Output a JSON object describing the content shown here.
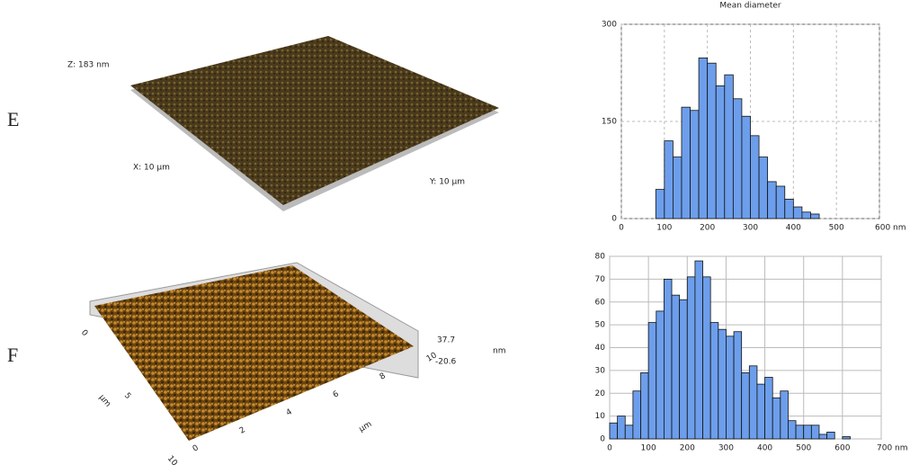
{
  "panels": {
    "e": {
      "label": "E",
      "z": "Z: 183 nm",
      "x": "X: 10 μm",
      "y": "Y: 10 μm"
    },
    "f": {
      "label": "F",
      "zmax": "37.7",
      "zmin": "-20.6",
      "zunit": "nm",
      "xunit": "μm",
      "yunit": "μm",
      "xticks": [
        "0",
        "2",
        "4",
        "6",
        "8",
        "10"
      ],
      "yticks": [
        "0",
        "5",
        "10"
      ]
    }
  },
  "chart_data": [
    {
      "type": "histogram",
      "title": "Mean diameter",
      "color": "#6d9eeb",
      "grid": true,
      "bins": [
        80,
        100,
        120,
        140,
        160,
        180,
        200,
        220,
        240,
        260,
        280,
        300,
        320,
        340,
        360,
        380,
        400,
        420,
        440,
        460
      ],
      "values": [
        45,
        120,
        95,
        172,
        167,
        248,
        240,
        205,
        222,
        185,
        158,
        128,
        95,
        57,
        50,
        30,
        18,
        10,
        7
      ],
      "xlim": [
        0,
        600
      ],
      "xticks": [
        0,
        100,
        200,
        300,
        400,
        500,
        {
          "value": 600,
          "label": "600 nm"
        }
      ],
      "ylim": [
        0,
        300
      ],
      "yticks": [
        0,
        150,
        300
      ]
    },
    {
      "type": "histogram",
      "color": "#6d9eeb",
      "grid": true,
      "bins": [
        0,
        20,
        40,
        60,
        80,
        100,
        120,
        140,
        160,
        180,
        200,
        220,
        240,
        260,
        280,
        300,
        320,
        340,
        360,
        380,
        400,
        420,
        440,
        460,
        480,
        500,
        520,
        540,
        560,
        580,
        600,
        620
      ],
      "values": [
        7,
        10,
        6,
        21,
        29,
        51,
        56,
        70,
        63,
        61,
        71,
        78,
        71,
        51,
        48,
        45,
        47,
        29,
        32,
        24,
        27,
        18,
        21,
        8,
        6,
        6,
        6,
        2,
        3,
        0,
        1
      ],
      "xlim": [
        0,
        700
      ],
      "xticks": [
        0,
        100,
        200,
        300,
        400,
        500,
        600,
        {
          "value": 700,
          "label": "700 nm"
        }
      ],
      "ylim": [
        0,
        80
      ],
      "yticks": [
        0,
        10,
        20,
        30,
        40,
        50,
        60,
        70,
        80
      ]
    }
  ]
}
